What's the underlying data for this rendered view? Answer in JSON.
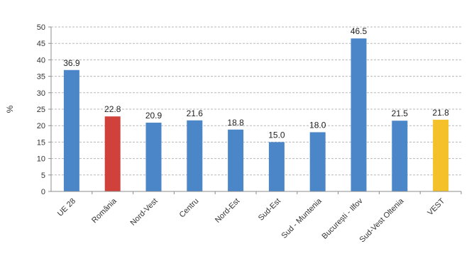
{
  "chart_data": {
    "type": "bar",
    "ylabel": "%",
    "ylim": [
      0,
      50
    ],
    "ytick_step": 5,
    "grid": true,
    "categories": [
      "UE 28",
      "România",
      "Nord-Vest",
      "Centru",
      "Nord-Est",
      "Sud-Est",
      "Sud - Muntenia",
      "București - Ilfov",
      "Sud-Vest Oltenia",
      "VEST"
    ],
    "values": [
      36.9,
      22.8,
      20.9,
      21.6,
      18.8,
      15.0,
      18.0,
      46.5,
      21.5,
      21.8
    ],
    "data_labels": [
      "36.9",
      "22.8",
      "20.9",
      "21.6",
      "18.8",
      "15.0",
      "18.0",
      "46.5",
      "21.5",
      "21.8"
    ],
    "bar_colors": [
      "#4a86c8",
      "#d0413b",
      "#4a86c8",
      "#4a86c8",
      "#4a86c8",
      "#4a86c8",
      "#4a86c8",
      "#4a86c8",
      "#4a86c8",
      "#f5c12a"
    ],
    "grid_color": "#b8b8b8",
    "axis_color": "#8c8c8c"
  }
}
